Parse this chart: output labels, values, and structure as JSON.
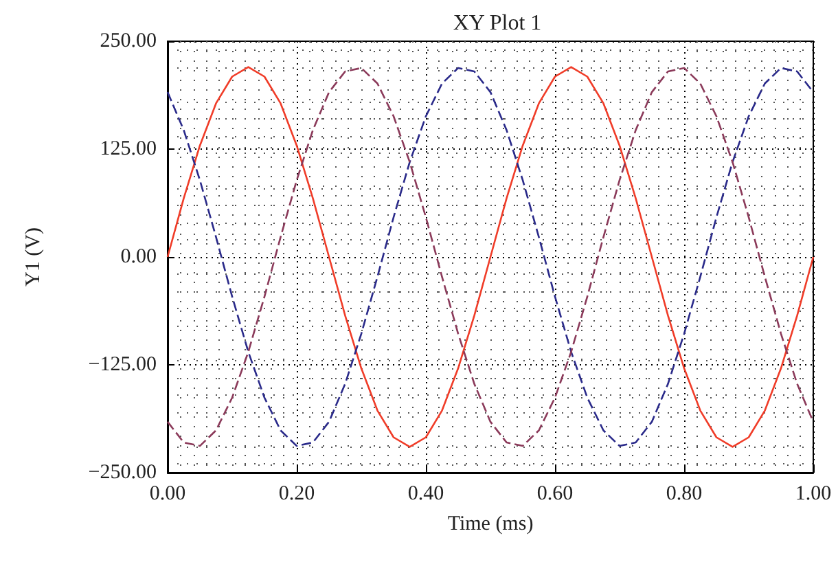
{
  "chart_data": {
    "type": "line",
    "title": "XY Plot 1",
    "xlabel": "Time (ms)",
    "ylabel": "Y1 (V)",
    "x": [
      0,
      0.025,
      0.05,
      0.075,
      0.1,
      0.125,
      0.15,
      0.175,
      0.2,
      0.225,
      0.25,
      0.275,
      0.3,
      0.325,
      0.35,
      0.375,
      0.4,
      0.425,
      0.45,
      0.475,
      0.5,
      0.525,
      0.55,
      0.575,
      0.6,
      0.625,
      0.65,
      0.675,
      0.7,
      0.725,
      0.75,
      0.775,
      0.8,
      0.825,
      0.85,
      0.875,
      0.9,
      0.925,
      0.95,
      0.975,
      1
    ],
    "series": [
      {
        "color": "#f03c28",
        "line_style": "solid",
        "values": [
          0,
          68,
          129,
          178,
          209,
          220,
          209,
          178,
          129,
          68,
          0,
          -68,
          -129,
          -178,
          -209,
          -220,
          -209,
          -178,
          -129,
          -68,
          0,
          68,
          129,
          178,
          209,
          220,
          209,
          178,
          129,
          68,
          0,
          -68,
          -129,
          -178,
          -209,
          -220,
          -209,
          -178,
          -129,
          -68,
          0
        ]
      },
      {
        "color": "#2a2a8a",
        "line_style": "dashed",
        "values": [
          191,
          147,
          89,
          23,
          -46,
          -110,
          -163,
          -201,
          -219,
          -215,
          -191,
          -147,
          -89,
          -23,
          46,
          110,
          163,
          201,
          219,
          215,
          191,
          147,
          89,
          23,
          -46,
          -110,
          -163,
          -201,
          -219,
          -215,
          -191,
          -147,
          -89,
          -23,
          46,
          110,
          163,
          201,
          219,
          215,
          191
        ]
      },
      {
        "color": "#8b3a5a",
        "line_style": "dashed",
        "values": [
          -191,
          -215,
          -219,
          -201,
          -163,
          -110,
          -46,
          23,
          89,
          147,
          191,
          215,
          219,
          201,
          163,
          110,
          46,
          -23,
          -89,
          -147,
          -191,
          -215,
          -219,
          -201,
          -163,
          -110,
          -46,
          23,
          89,
          147,
          191,
          215,
          219,
          201,
          163,
          110,
          46,
          -23,
          -89,
          -147,
          -191
        ]
      }
    ],
    "xlim": [
      0,
      1
    ],
    "xticks": [
      {
        "value": 0,
        "label": "0.00"
      },
      {
        "value": 0.2,
        "label": "0.20"
      },
      {
        "value": 0.4,
        "label": "0.40"
      },
      {
        "value": 0.6,
        "label": "0.60"
      },
      {
        "value": 0.8,
        "label": "0.80"
      },
      {
        "value": 1,
        "label": "1.00"
      }
    ],
    "ylim": [
      -250,
      250
    ],
    "yticks": [
      {
        "value": -250,
        "label": "−250.00"
      },
      {
        "value": -125,
        "label": "−125.00"
      },
      {
        "value": 0,
        "label": "0.00"
      },
      {
        "value": 125,
        "label": "125.00"
      },
      {
        "value": 250,
        "label": "250.00"
      }
    ],
    "grid": true,
    "marker": "none"
  }
}
